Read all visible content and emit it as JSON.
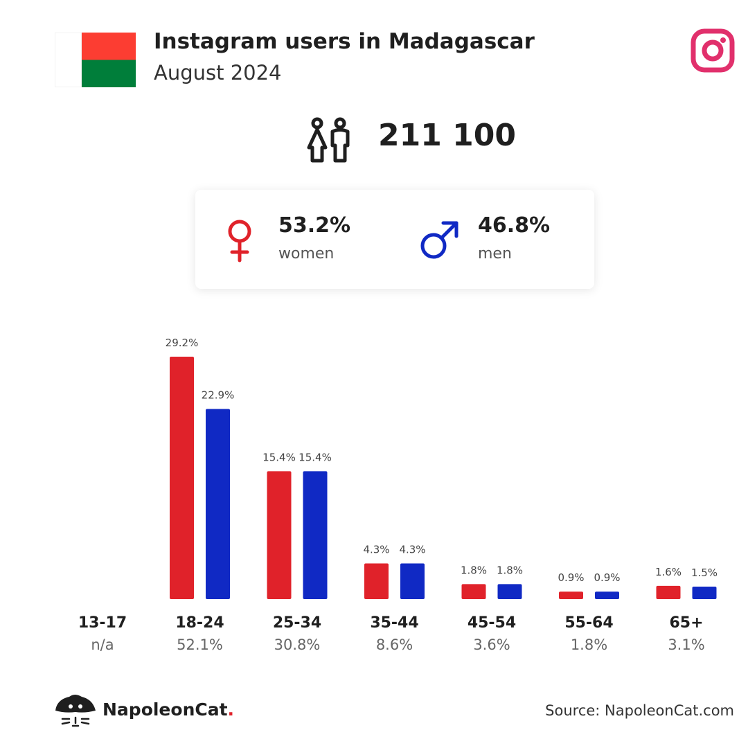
{
  "header": {
    "title": "Instagram users in Madagascar",
    "subtitle": "August 2024",
    "flag_colors": {
      "white": "#ffffff",
      "red": "#fc3d32",
      "green": "#007e3a"
    },
    "platform_icon": "instagram-icon",
    "platform_color": "#e1306c"
  },
  "total": {
    "icon": "users-icon",
    "value": "211 100"
  },
  "gender": {
    "women": {
      "icon": "female-symbol-icon",
      "value": "53.2%",
      "label": "women",
      "color": "#e0222a"
    },
    "men": {
      "icon": "male-symbol-icon",
      "value": "46.8%",
      "label": "men",
      "color": "#1029c4"
    }
  },
  "chart_data": {
    "type": "bar",
    "title": "",
    "xlabel": "",
    "ylabel": "",
    "categories": [
      "13-17",
      "18-24",
      "25-34",
      "35-44",
      "45-54",
      "55-64",
      "65+"
    ],
    "category_totals": [
      "n/a",
      "52.1%",
      "30.8%",
      "8.6%",
      "3.6%",
      "1.8%",
      "3.1%"
    ],
    "series": [
      {
        "color": "#e0222a",
        "values": [
          null,
          29.2,
          15.4,
          4.3,
          1.8,
          0.9,
          1.6
        ],
        "labels": [
          null,
          "29.2%",
          "15.4%",
          "4.3%",
          "1.8%",
          "0.9%",
          "1.6%"
        ]
      },
      {
        "color": "#1029c4",
        "values": [
          null,
          22.9,
          15.4,
          4.3,
          1.8,
          0.9,
          1.5
        ],
        "labels": [
          null,
          "22.9%",
          "15.4%",
          "4.3%",
          "1.8%",
          "0.9%",
          "1.5%"
        ]
      }
    ],
    "ylim": [
      0,
      29.2
    ],
    "grid": false,
    "legend": "none"
  },
  "footer": {
    "brand_name": "NapoleonCat",
    "brand_dot": ".",
    "logo_icon": "napoleoncat-logo-icon",
    "source": "Source: NapoleonCat.com"
  }
}
